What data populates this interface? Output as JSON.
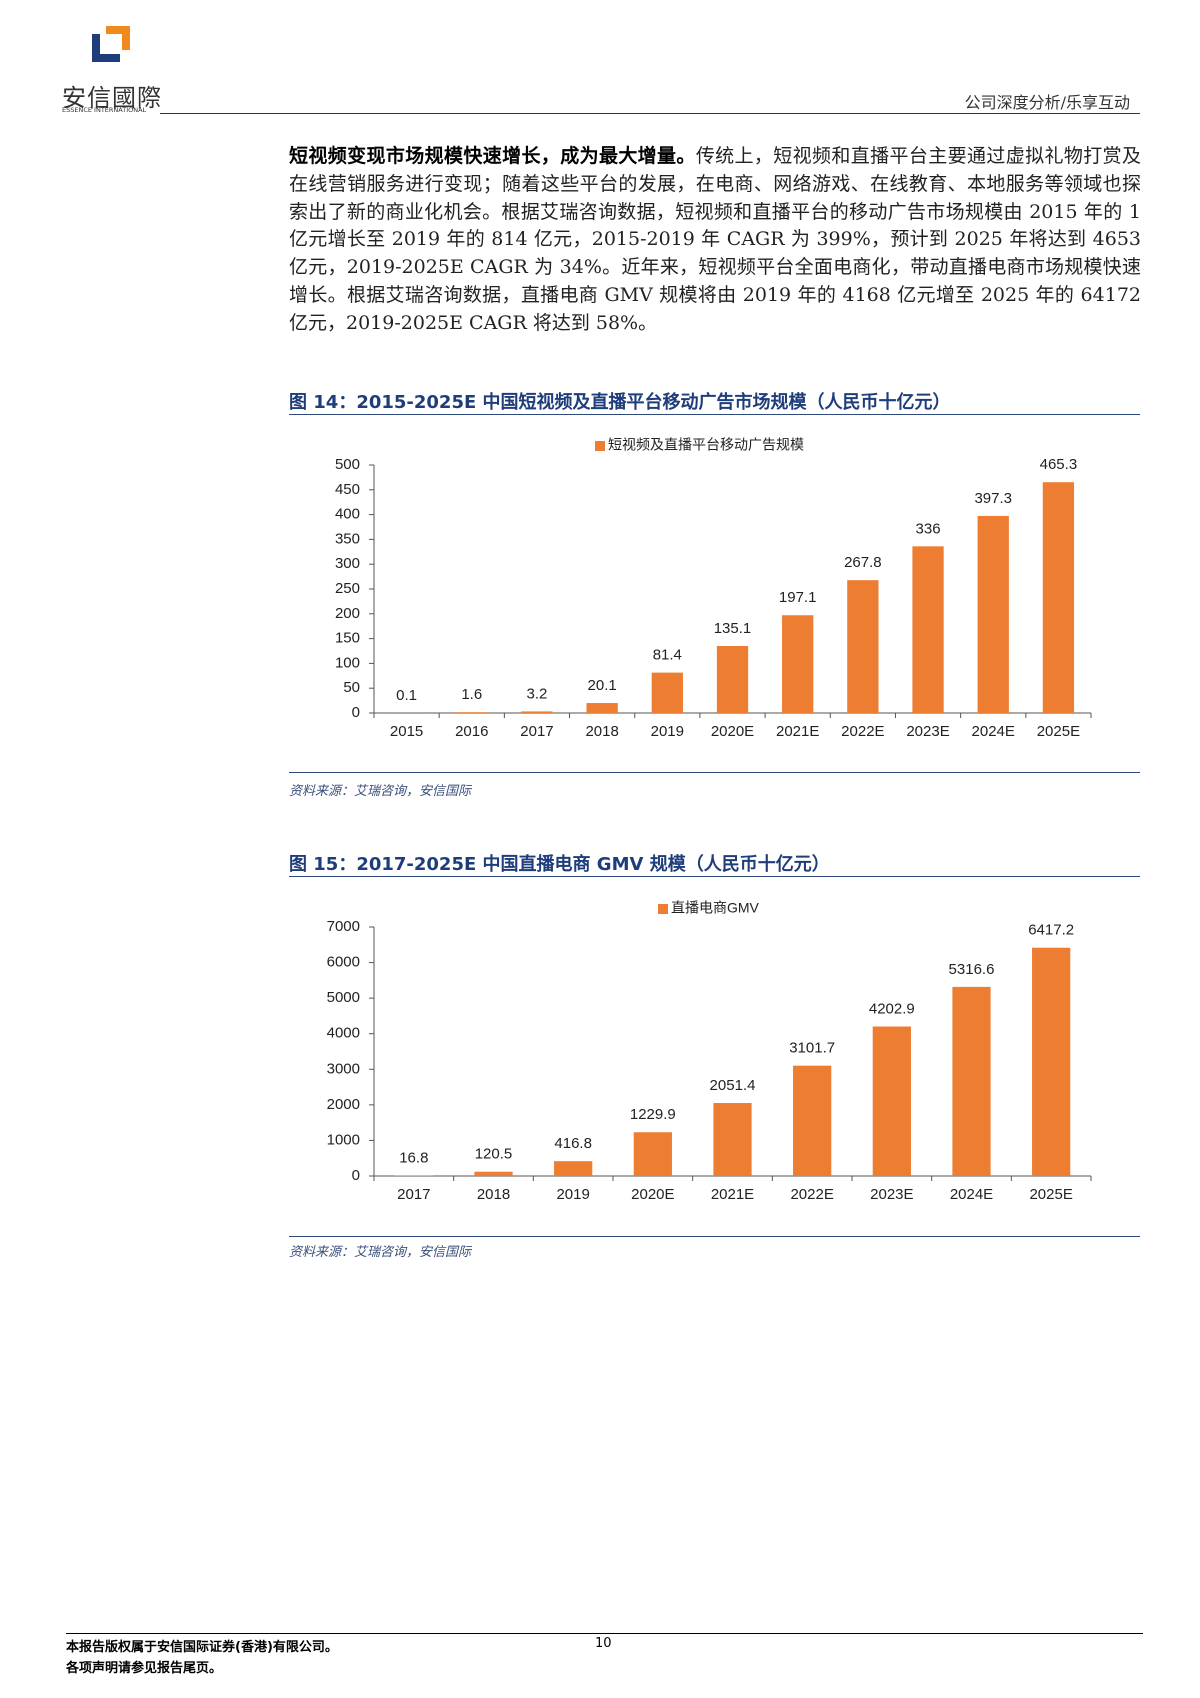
{
  "header": {
    "logo_text": "安信國際",
    "logo_subtext": "ESSENCE INTERNATIONAL",
    "section": "公司深度分析/乐享互动"
  },
  "body": {
    "lead": "短视频变现市场规模快速增长，成为最大增量。",
    "text": "传统上，短视频和直播平台主要通过虚拟礼物打赏及在线营销服务进行变现；随着这些平台的发展，在电商、网络游戏、在线教育、本地服务等领域也探索出了新的商业化机会。根据艾瑞咨询数据，短视频和直播平台的移动广告市场规模由 2015 年的 1 亿元增长至 2019 年的 814 亿元，2015-2019 年 CAGR 为 399%，预计到 2025 年将达到 4653 亿元，2019-2025E CAGR 为 34%。近年来，短视频平台全面电商化，带动直播电商市场规模快速增长。根据艾瑞咨询数据，直播电商 GMV 规模将由 2019 年的 4168 亿元增至 2025 年的 64172 亿元，2019-2025E CAGR 将达到 58%。"
  },
  "chart_data": [
    {
      "type": "bar",
      "title": "图 14：2015-2025E 中国短视频及直播平台移动广告市场规模（人民币十亿元）",
      "categories": [
        "2015",
        "2016",
        "2017",
        "2018",
        "2019",
        "2020E",
        "2021E",
        "2022E",
        "2023E",
        "2024E",
        "2025E"
      ],
      "series": [
        {
          "name": "短视频及直播平台移动广告规模",
          "color": "#ed7d31",
          "values": [
            0.1,
            1.6,
            3.2,
            20.1,
            81.4,
            135.1,
            197.1,
            267.8,
            336,
            397.3,
            465.3
          ]
        }
      ],
      "ylim": [
        0,
        500
      ],
      "yticks": [
        0,
        50,
        100,
        150,
        200,
        250,
        300,
        350,
        400,
        450,
        500
      ],
      "legend": "top",
      "source": "资料来源：艾瑞咨询，安信国际"
    },
    {
      "type": "bar",
      "title": "图 15：2017-2025E 中国直播电商 GMV 规模（人民币十亿元）",
      "categories": [
        "2017",
        "2018",
        "2019",
        "2020E",
        "2021E",
        "2022E",
        "2023E",
        "2024E",
        "2025E"
      ],
      "series": [
        {
          "name": "直播电商GMV",
          "color": "#ed7d31",
          "values": [
            16.8,
            120.5,
            416.8,
            1229.9,
            2051.4,
            3101.7,
            4202.9,
            5316.6,
            6417.2
          ]
        }
      ],
      "ylim": [
        0,
        7000
      ],
      "yticks": [
        0,
        1000,
        2000,
        3000,
        4000,
        5000,
        6000,
        7000
      ],
      "legend": "top",
      "source": "资料来源：艾瑞咨询，安信国际"
    }
  ],
  "footer": {
    "copyright": "本报告版权属于安信国际证券(香港)有限公司。",
    "notice": "各项声明请参见报告尾页。",
    "page": "10"
  }
}
